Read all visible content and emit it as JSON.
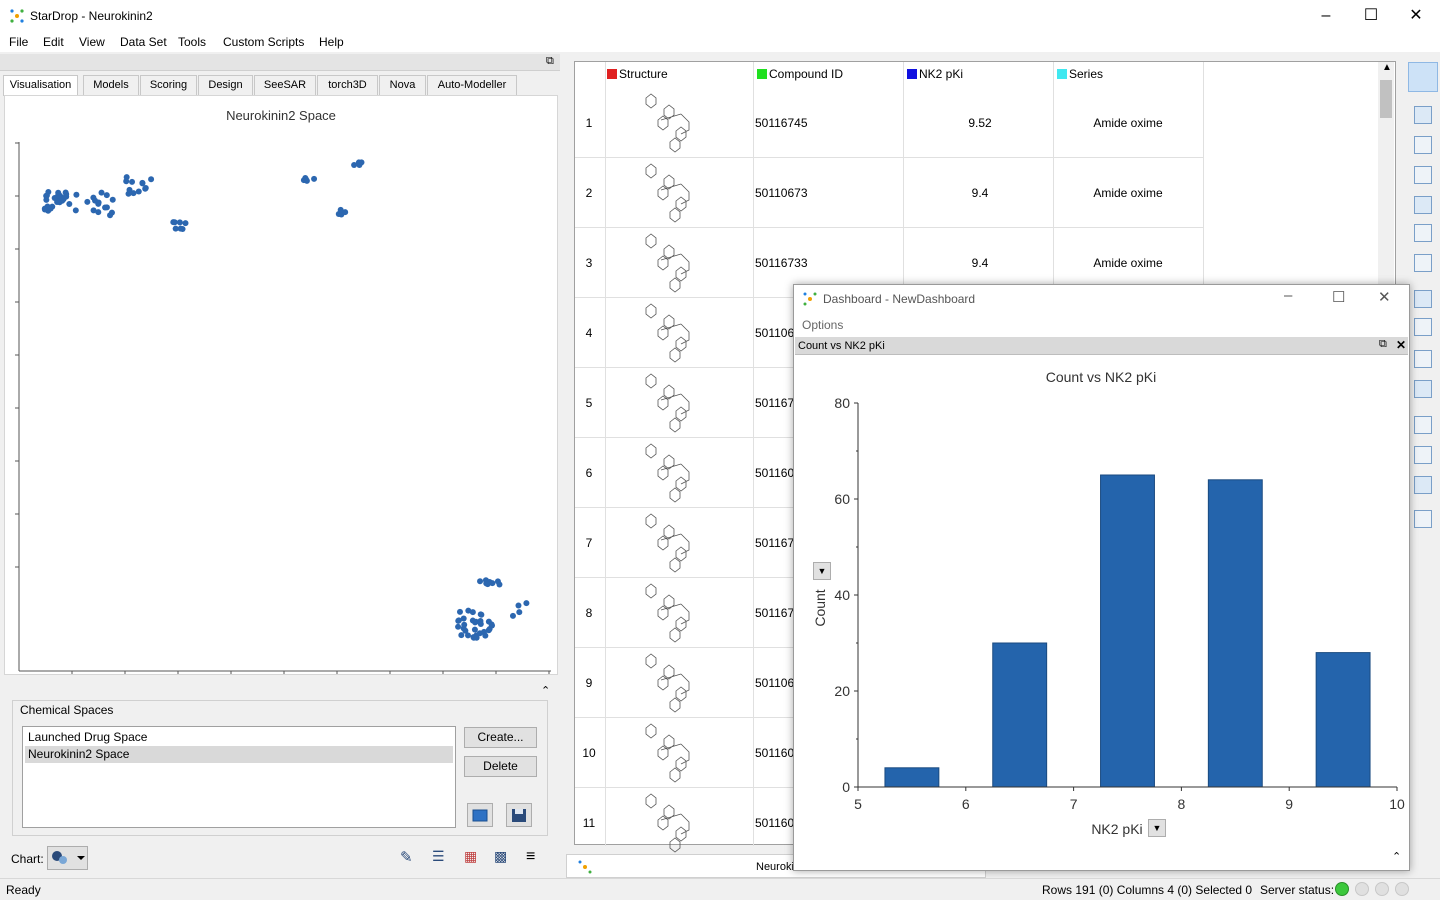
{
  "window": {
    "title": "StarDrop - Neurokinin2"
  },
  "menu": [
    "File",
    "Edit",
    "View",
    "Data Set",
    "Tools",
    "Custom Scripts",
    "Help"
  ],
  "tabs": [
    "Visualisation",
    "Models",
    "Scoring",
    "Design",
    "SeeSAR",
    "torch3D",
    "Nova",
    "Auto-Modeller"
  ],
  "scatter": {
    "title": "Neurokinin2 Space"
  },
  "chemical_spaces": {
    "label": "Chemical Spaces",
    "items": [
      "Launched Drug Space",
      "Neurokinin2 Space"
    ],
    "create_label": "Create...",
    "delete_label": "Delete",
    "chart_label": "Chart:"
  },
  "table": {
    "columns": [
      {
        "name": "Structure",
        "color": "#e02020"
      },
      {
        "name": "Compound ID",
        "color": "#20e020"
      },
      {
        "name": "NK2 pKi",
        "color": "#1010e0"
      },
      {
        "name": "Series",
        "color": "#40e8f0"
      }
    ],
    "rows": [
      {
        "n": "1",
        "id": "50116745",
        "pki": "9.52",
        "series": "Amide oxime"
      },
      {
        "n": "2",
        "id": "50110673",
        "pki": "9.4",
        "series": "Amide oxime"
      },
      {
        "n": "3",
        "id": "50116733",
        "pki": "9.4",
        "series": "Amide oxime"
      },
      {
        "n": "4",
        "id": "5011065"
      },
      {
        "n": "5",
        "id": "5011672"
      },
      {
        "n": "6",
        "id": "5011608"
      },
      {
        "n": "7",
        "id": "5011672"
      },
      {
        "n": "8",
        "id": "5011673"
      },
      {
        "n": "9",
        "id": "5011065"
      },
      {
        "n": "10",
        "id": "5011609"
      },
      {
        "n": "11",
        "id": "5011608"
      }
    ],
    "bottom_tab": "Neuroki"
  },
  "dashboard": {
    "title": "Dashboard - NewDashboard",
    "options": "Options",
    "panel_title": "Count vs NK2 pKi"
  },
  "chart_data": {
    "type": "bar",
    "title": "Count vs NK2 pKi",
    "xlabel": "NK2 pKi",
    "ylabel": "Count",
    "x_ticks": [
      "5",
      "6",
      "7",
      "8",
      "9",
      "10"
    ],
    "y_ticks": [
      "0",
      "20",
      "40",
      "60",
      "80"
    ],
    "xlim": [
      5,
      10
    ],
    "ylim": [
      0,
      80
    ],
    "bins": [
      [
        5.25,
        5.75
      ],
      [
        6.25,
        6.75
      ],
      [
        7.25,
        7.75
      ],
      [
        8.25,
        8.75
      ],
      [
        9.25,
        9.75
      ]
    ],
    "values": [
      4,
      30,
      65,
      64,
      28
    ],
    "color": "#2464ac"
  },
  "status": {
    "ready": "Ready",
    "info": "Rows 191 (0) Columns 4 (0) Selected 0",
    "server": "Server status:"
  }
}
